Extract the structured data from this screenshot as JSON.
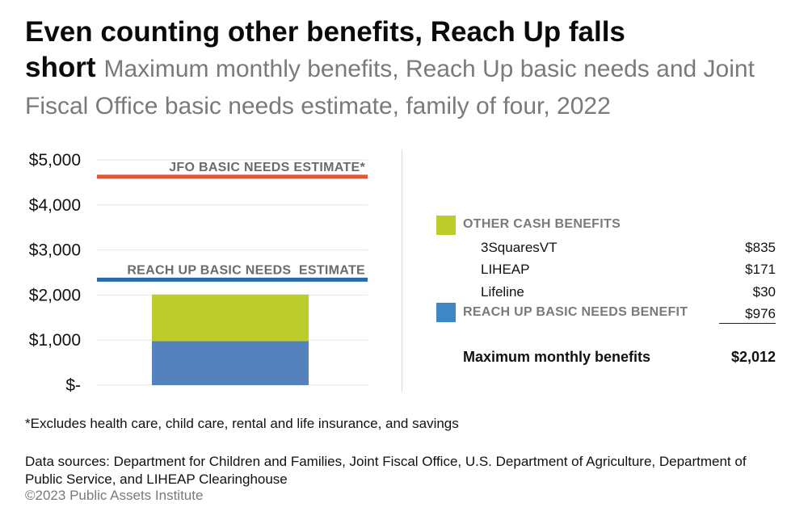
{
  "header": {
    "title": "Even counting other benefits, Reach Up falls short",
    "subtitle": "Maximum monthly benefits, Reach Up basic needs and Joint Fiscal Office basic needs estimate, family of four, 2022"
  },
  "chart_data": {
    "type": "bar",
    "stacked": true,
    "categories": [
      ""
    ],
    "series": [
      {
        "name": "REACH UP BASIC NEEDS BENEFIT",
        "values": [
          976
        ],
        "color": "#5582bd"
      },
      {
        "name": "OTHER CASH BENEFITS",
        "values": [
          1036
        ],
        "color": "#bccd2b"
      }
    ],
    "reference_lines": [
      {
        "label": "JFO BASIC NEEDS ESTIMATE*",
        "value": 4625,
        "color": "#e0563a"
      },
      {
        "label": "REACH UP BASIC NEEDS  ESTIMATE",
        "value": 2340,
        "color": "#2a6aa8"
      }
    ],
    "ylim": [
      0,
      5000
    ],
    "ytick_values": [
      0,
      1000,
      2000,
      3000,
      4000,
      5000
    ],
    "ytick_labels": [
      "$-",
      "$1,000",
      "$2,000",
      "$3,000",
      "$4,000",
      "$5,000"
    ],
    "grid": true,
    "xlabel": "",
    "ylabel": ""
  },
  "legend": {
    "other": {
      "label": "OTHER CASH BENEFITS",
      "color": "#bccd2b"
    },
    "items": [
      {
        "label": "3SquaresVT",
        "value": "$835"
      },
      {
        "label": "LIHEAP",
        "value": "$171"
      },
      {
        "label": "Lifeline",
        "value": "$30"
      }
    ],
    "reachup": {
      "label": "REACH UP BASIC NEEDS BENEFIT",
      "value": "$976",
      "color": "#3f86c4"
    },
    "total": {
      "label": "Maximum monthly benefits",
      "value": "$2,012"
    }
  },
  "footer": {
    "note": "*Excludes health care, child care, rental and life insurance, and savings",
    "sources": "Data sources: Department for Children and Families, Joint Fiscal Office, U.S. Department of Agriculture, Department of Public Service, and LIHEAP Clearinghouse",
    "copyright": "©2023 Public Assets Institute"
  }
}
